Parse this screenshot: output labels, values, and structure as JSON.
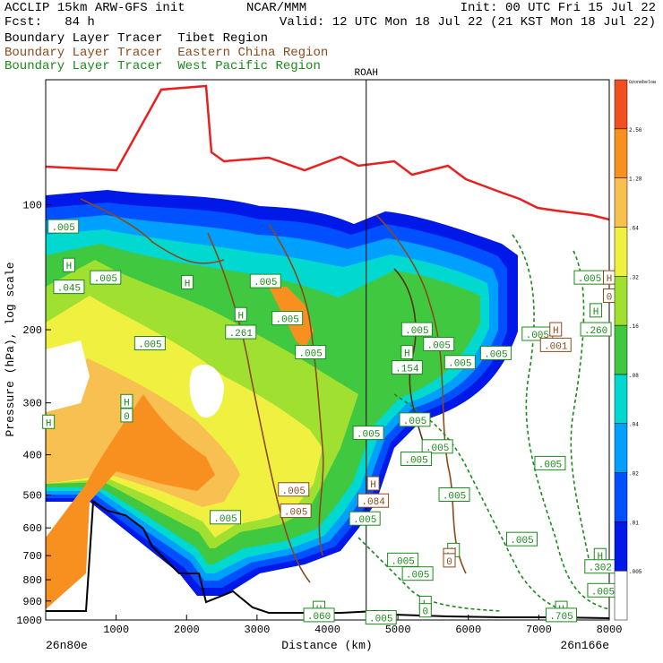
{
  "header": {
    "line1_left": "ACCLIP 15km ARW-GFS init",
    "line1_center": "NCAR/MMM",
    "line1_right": "Init: 00 UTC Fri 15 Jul 22",
    "line2_left": "Fcst:   84 h",
    "line2_right": "Valid: 12 UTC Mon 18 Jul 22 (21 KST Mon 18 Jul 22)",
    "legend": [
      {
        "label": "Boundary Layer Tracer  Tibet Region",
        "color": "#000000"
      },
      {
        "label": "Boundary Layer Tracer  Eastern China Region",
        "color": "#8b4a1a"
      },
      {
        "label": "Boundary Layer Tracer  West Pacific Region",
        "color": "#1a8a1a"
      }
    ]
  },
  "chart_data": {
    "type": "heatmap",
    "xlabel": "Distance (km)",
    "ylabel": "Pressure (hPa), log scale",
    "x_ticks": [
      "1000",
      "2000",
      "3000",
      "4000",
      "5000",
      "6000",
      "7000",
      "8000"
    ],
    "y_ticks": [
      "100",
      "200",
      "300",
      "400",
      "500",
      "600",
      "700",
      "800",
      "900",
      "1000"
    ],
    "y_scale": "log",
    "xlim": [
      0,
      8000
    ],
    "ylim": [
      1000,
      50
    ],
    "left_endpoint": "26n80e",
    "right_endpoint": "26n166e",
    "marker_label": "ROAH",
    "marker_x_km": 4550,
    "colorbar": {
      "labels": [
        ".005",
        ".01",
        ".02",
        ".04",
        ".08",
        ".16",
        ".32",
        ".64",
        "1.28",
        "2.56"
      ],
      "top_label": "Ozonebelow",
      "colors": [
        "#ffffff",
        "#0018e8",
        "#0050ff",
        "#00a0ff",
        "#00d8d0",
        "#40c840",
        "#a0e030",
        "#f0f040",
        "#f8c050",
        "#f89020",
        "#f05020"
      ]
    },
    "tropopause_color": "#e82020",
    "terrain_color": "#000000",
    "tracer_colors": {
      "tibet": "#000000",
      "eastern_china": "#8b4a1a",
      "west_pacific": "#1a8a1a"
    },
    "labels": [
      {
        "text": ".005",
        "x_km": 250,
        "p": 113,
        "series": "west_pacific"
      },
      {
        "text": "H",
        "x_km": 330,
        "p": 140,
        "series": "west_pacific"
      },
      {
        "text": ".045",
        "x_km": 330,
        "p": 158,
        "series": "west_pacific"
      },
      {
        "text": ".005",
        "x_km": 850,
        "p": 150,
        "series": "west_pacific"
      },
      {
        "text": "H",
        "x_km": 2010,
        "p": 154,
        "series": "west_pacific"
      },
      {
        "text": ".005",
        "x_km": 3120,
        "p": 153,
        "series": "west_pacific"
      },
      {
        "text": ".005",
        "x_km": 3430,
        "p": 188,
        "series": "west_pacific"
      },
      {
        "text": "H",
        "x_km": 2770,
        "p": 184,
        "series": "west_pacific"
      },
      {
        "text": ".261",
        "x_km": 2770,
        "p": 203,
        "series": "west_pacific"
      },
      {
        "text": ".005",
        "x_km": 1480,
        "p": 216,
        "series": "west_pacific"
      },
      {
        "text": ".005",
        "x_km": 3760,
        "p": 227,
        "series": "west_pacific"
      },
      {
        "text": "H",
        "x_km": 1150,
        "p": 298,
        "series": "west_pacific"
      },
      {
        "text": "0",
        "x_km": 1150,
        "p": 322,
        "series": "west_pacific"
      },
      {
        "text": "H",
        "x_km": 40,
        "p": 334,
        "series": "west_pacific"
      },
      {
        "text": ".005",
        "x_km": 5270,
        "p": 200,
        "series": "west_pacific"
      },
      {
        "text": "H",
        "x_km": 5130,
        "p": 227,
        "series": "west_pacific"
      },
      {
        "text": ".154",
        "x_km": 5130,
        "p": 247,
        "series": "west_pacific"
      },
      {
        "text": ".005",
        "x_km": 5580,
        "p": 217,
        "series": "west_pacific"
      },
      {
        "text": ".005",
        "x_km": 5880,
        "p": 240,
        "series": "west_pacific"
      },
      {
        "text": ".005",
        "x_km": 6390,
        "p": 228,
        "series": "west_pacific"
      },
      {
        "text": ".005",
        "x_km": 7720,
        "p": 150,
        "series": "west_pacific"
      },
      {
        "text": "H",
        "x_km": 8000,
        "p": 150,
        "series": "eastern_china"
      },
      {
        "text": "0",
        "x_km": 8000,
        "p": 166,
        "series": "eastern_china"
      },
      {
        "text": "H",
        "x_km": 7810,
        "p": 180,
        "series": "west_pacific"
      },
      {
        "text": ".260",
        "x_km": 7810,
        "p": 200,
        "series": "west_pacific"
      },
      {
        "text": ".005",
        "x_km": 6980,
        "p": 205,
        "series": "west_pacific"
      },
      {
        "text": "H",
        "x_km": 7240,
        "p": 200,
        "series": "eastern_china"
      },
      {
        "text": ".001",
        "x_km": 7240,
        "p": 218,
        "series": "eastern_china"
      },
      {
        "text": ".005",
        "x_km": 4580,
        "p": 355,
        "series": "west_pacific"
      },
      {
        "text": ".005",
        "x_km": 5240,
        "p": 330,
        "series": "west_pacific"
      },
      {
        "text": ".005",
        "x_km": 5560,
        "p": 383,
        "series": "west_pacific"
      },
      {
        "text": ".005",
        "x_km": 5260,
        "p": 410,
        "series": "west_pacific"
      },
      {
        "text": ".005",
        "x_km": 7160,
        "p": 420,
        "series": "west_pacific"
      },
      {
        "text": ".005",
        "x_km": 5800,
        "p": 500,
        "series": "west_pacific"
      },
      {
        "text": "H",
        "x_km": 4650,
        "p": 470,
        "series": "eastern_china"
      },
      {
        "text": ".084",
        "x_km": 4650,
        "p": 517,
        "series": "eastern_china"
      },
      {
        "text": ".005",
        "x_km": 3520,
        "p": 486,
        "series": "eastern_china"
      },
      {
        "text": ".005",
        "x_km": 3550,
        "p": 547,
        "series": "eastern_china"
      },
      {
        "text": ".005",
        "x_km": 2550,
        "p": 567,
        "series": "west_pacific"
      },
      {
        "text": ".005",
        "x_km": 4530,
        "p": 571,
        "series": "west_pacific"
      },
      {
        "text": ".005",
        "x_km": 6760,
        "p": 640,
        "series": "west_pacific"
      },
      {
        "text": "H",
        "x_km": 5790,
        "p": 680,
        "series": "west_pacific"
      },
      {
        "text": "L",
        "x_km": 5730,
        "p": 700,
        "series": "eastern_china"
      },
      {
        "text": "0",
        "x_km": 5730,
        "p": 720,
        "series": "eastern_china"
      },
      {
        "text": ".005",
        "x_km": 5070,
        "p": 718,
        "series": "west_pacific"
      },
      {
        "text": "H",
        "x_km": 7870,
        "p": 700,
        "series": "west_pacific"
      },
      {
        "text": ".302",
        "x_km": 7870,
        "p": 745,
        "series": "west_pacific"
      },
      {
        "text": ".005",
        "x_km": 5280,
        "p": 775,
        "series": "west_pacific"
      },
      {
        "text": ".005",
        "x_km": 7910,
        "p": 850,
        "series": "west_pacific"
      },
      {
        "text": "L",
        "x_km": 5390,
        "p": 912,
        "series": "west_pacific"
      },
      {
        "text": "0",
        "x_km": 5390,
        "p": 950,
        "series": "west_pacific"
      },
      {
        "text": "H",
        "x_km": 3880,
        "p": 938,
        "series": "west_pacific"
      },
      {
        "text": ".060",
        "x_km": 3880,
        "p": 975,
        "series": "west_pacific"
      },
      {
        "text": ".005",
        "x_km": 4760,
        "p": 988,
        "series": "west_pacific"
      },
      {
        "text": "H",
        "x_km": 7320,
        "p": 938,
        "series": "west_pacific"
      },
      {
        "text": ".705",
        "x_km": 7320,
        "p": 975,
        "series": "west_pacific"
      }
    ]
  }
}
